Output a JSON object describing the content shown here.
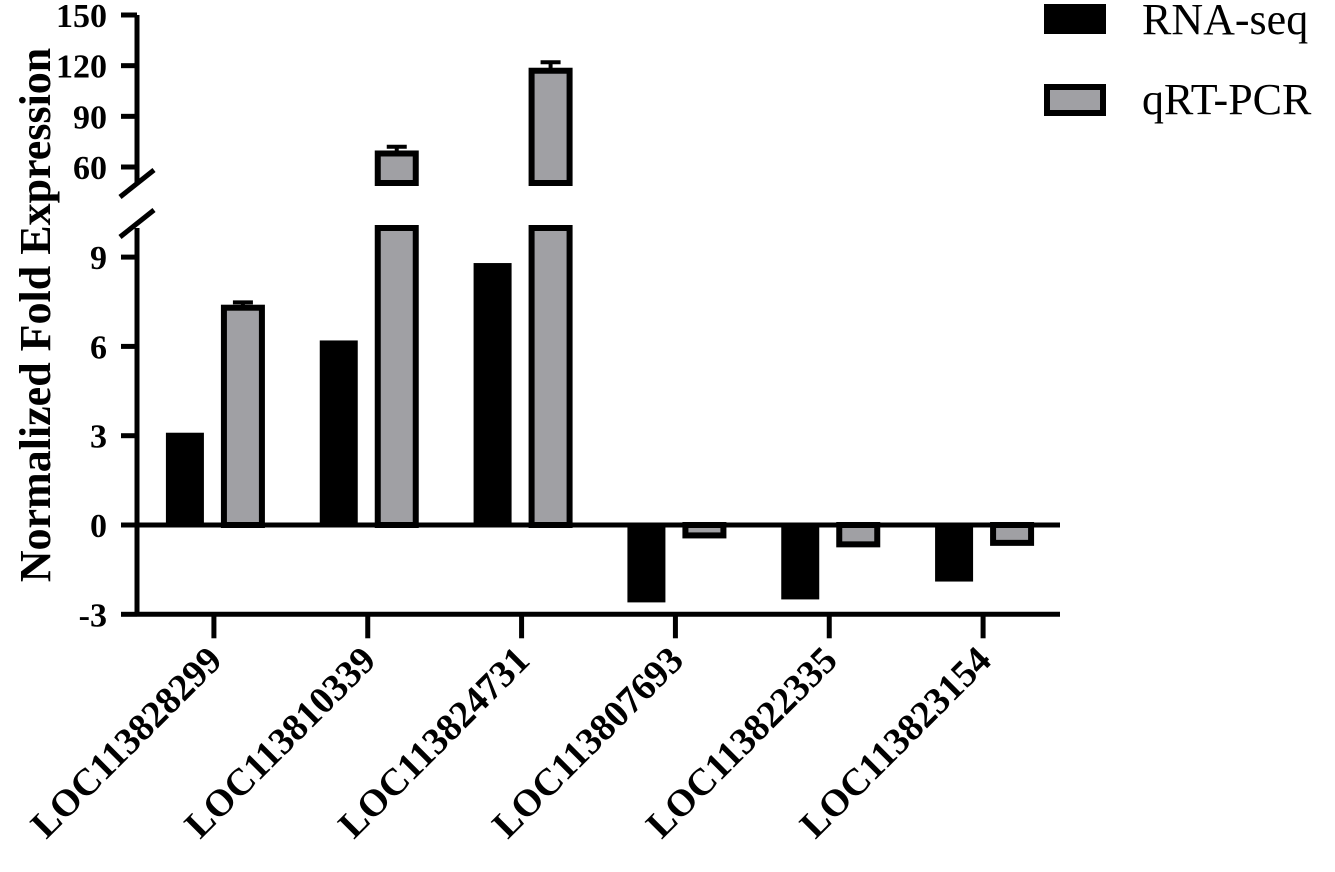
{
  "chart_data": {
    "type": "bar",
    "ylabel": "Normalized Fold Expression",
    "categories": [
      "LOC113828299",
      "LOC113810339",
      "LOC113824731",
      "LOC113807693",
      "LOC113822335",
      "LOC113823154"
    ],
    "series": [
      {
        "name": "RNA-seq",
        "values": [
          3.1,
          6.2,
          8.8,
          -2.6,
          -2.5,
          -1.9
        ],
        "errors": [
          0,
          0,
          0,
          0,
          0,
          0
        ]
      },
      {
        "name": "qRT-PCR",
        "values": [
          7.3,
          68,
          117,
          -0.35,
          -0.65,
          -0.6
        ],
        "errors": [
          0.18,
          4,
          5,
          0,
          0,
          0
        ]
      }
    ],
    "y_axis": {
      "broken": true,
      "lower": {
        "range": [
          -3,
          10
        ],
        "ticks": [
          -3,
          0,
          3,
          6,
          9
        ]
      },
      "upper": {
        "range": [
          50,
          150
        ],
        "ticks": [
          60,
          90,
          120,
          150
        ]
      }
    },
    "legend_position": "top-right",
    "colors": {
      "RNA-seq": "#000000",
      "qRT-PCR": "#a0a0a4",
      "outline": "#000000"
    }
  }
}
